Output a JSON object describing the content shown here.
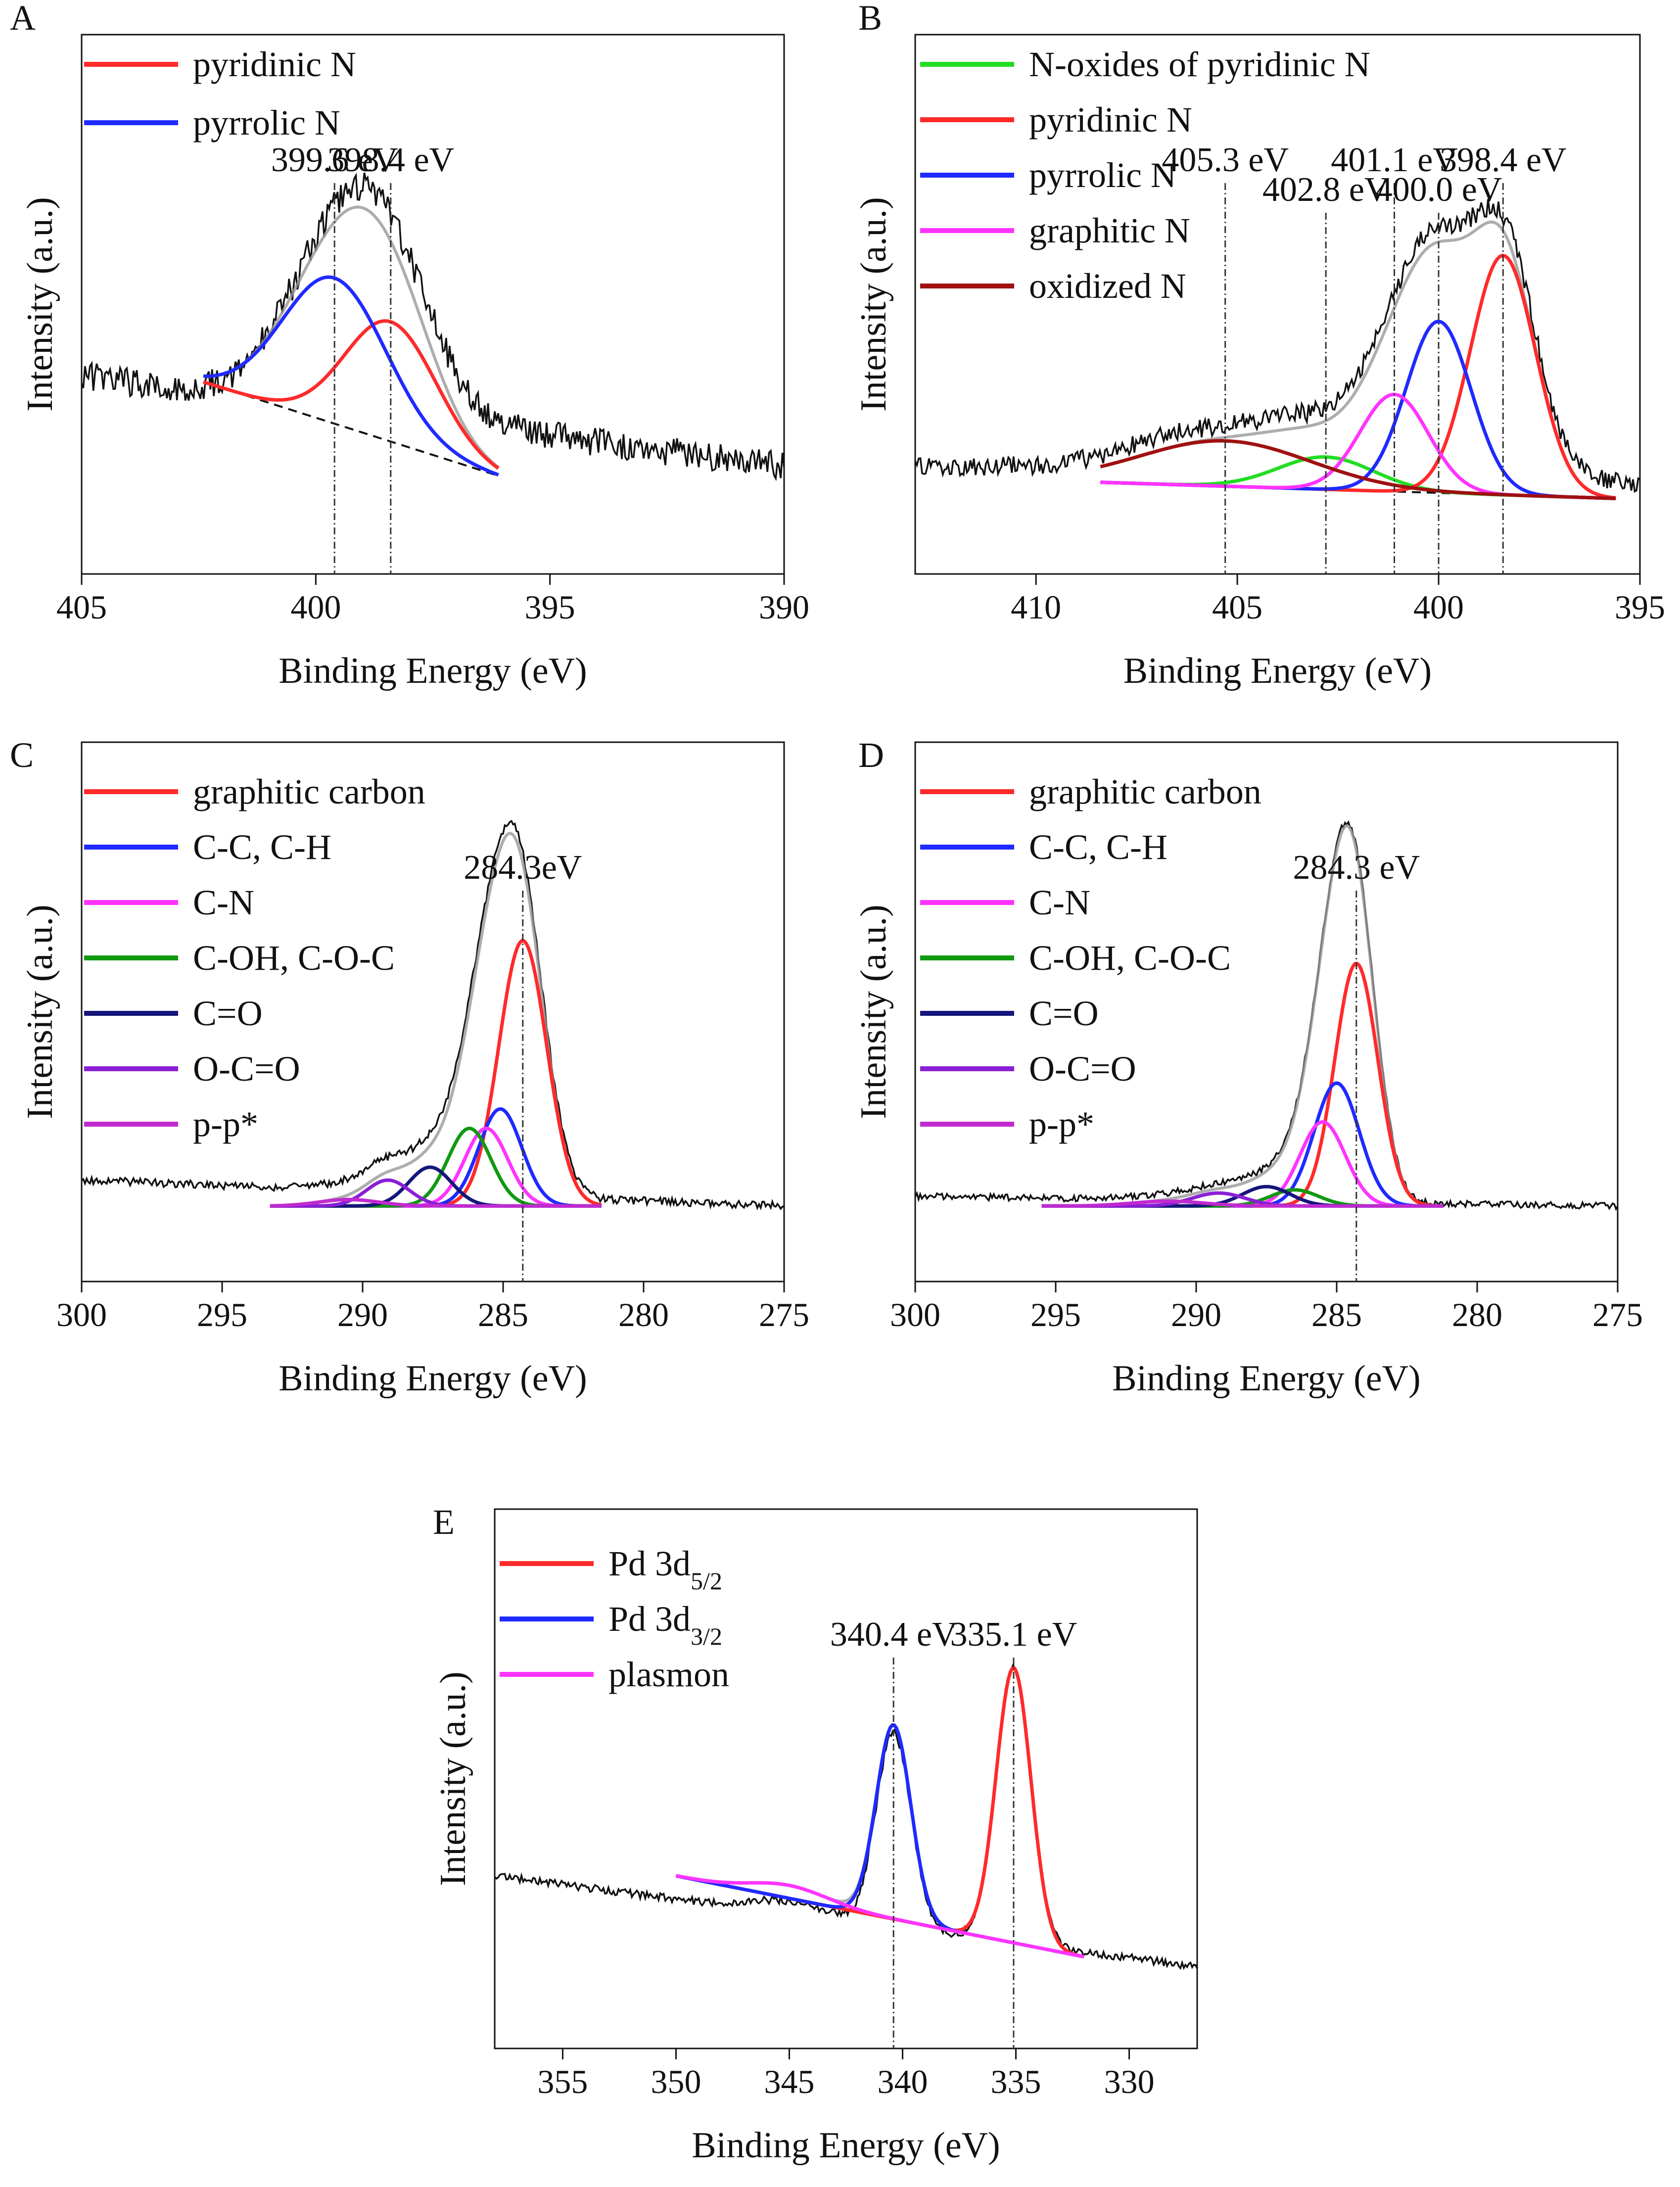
{
  "figure": {
    "xlabel": "Binding Energy (eV)",
    "ylabel": "Intensity (a.u.)"
  },
  "colors": {
    "pyridinic": "#ff2a2a",
    "pyrrolic": "#1f2aff",
    "noxide": "#22dd22",
    "graphitic": "#ff33ff",
    "oxidized": "#a01010",
    "c_oh": "#119911",
    "c_o": "#15157a",
    "o_c_o": "#8a1fd6",
    "pipi": "#c02ad0",
    "raw": "#111111",
    "envelope": "#999999"
  },
  "chart_data": [
    {
      "panel": "A",
      "type": "line",
      "xlabel": "Binding Energy (eV)",
      "ylabel": "Intensity (a.u.)",
      "xlim": [
        405,
        390
      ],
      "xticks": [
        405,
        400,
        395,
        390
      ],
      "legend": [
        "pyridinic N",
        "pyrrolic N"
      ],
      "series": [
        {
          "name": "pyridinic N",
          "center": 398.4,
          "fwhm": 2.3,
          "amp": 0.37
        },
        {
          "name": "pyrrolic N",
          "center": 399.6,
          "fwhm": 2.6,
          "amp": 0.45
        }
      ],
      "background": {
        "range": [
          402.4,
          396.1
        ],
        "start": 0.36,
        "end": 0.07
      },
      "raw": {
        "range": [
          405,
          390
        ],
        "base_left": 0.38,
        "base_right": 0.1,
        "noise": 0.045
      },
      "annotations": [
        {
          "label": "399.6 eV",
          "x": 399.6
        },
        {
          "label": "398.4 eV",
          "x": 398.4
        }
      ]
    },
    {
      "panel": "B",
      "type": "line",
      "xlabel": "Binding Energy (eV)",
      "ylabel": "Intensity (a.u.)",
      "xlim": [
        413,
        395
      ],
      "xticks": [
        410,
        405,
        400,
        395
      ],
      "legend": [
        "N-oxides of pyridinic N",
        "pyridinic N",
        "pyrrolic N",
        "graphitic N",
        "oxidized N"
      ],
      "series": [
        {
          "name": "N-oxides of pyridinic N",
          "center": 402.8,
          "fwhm": 2.8,
          "amp": 0.1
        },
        {
          "name": "pyridinic N",
          "center": 398.4,
          "fwhm": 1.9,
          "amp": 0.74
        },
        {
          "name": "pyrrolic N",
          "center": 400.0,
          "fwhm": 1.9,
          "amp": 0.53
        },
        {
          "name": "graphitic N",
          "center": 401.1,
          "fwhm": 2.0,
          "amp": 0.3
        },
        {
          "name": "oxidized N",
          "center": 405.3,
          "fwhm": 5.0,
          "amp": 0.14
        }
      ],
      "background": {
        "range": [
          408.4,
          395.6
        ],
        "start": 0.05,
        "end": 0.0
      },
      "raw": {
        "range": [
          413,
          395
        ],
        "base_left": 0.1,
        "base_right": 0.05,
        "noise": 0.03
      },
      "annotations": [
        {
          "label": "405.3 eV",
          "x": 405.3
        },
        {
          "label": "402.8 eV",
          "x": 402.8
        },
        {
          "label": "401.1 eV",
          "x": 401.1
        },
        {
          "label": "400.0 eV",
          "x": 400.0
        },
        {
          "label": "398.4 eV",
          "x": 398.4
        }
      ]
    },
    {
      "panel": "C",
      "type": "line",
      "xlabel": "Binding Energy (eV)",
      "ylabel": "Intensity (a.u.)",
      "xlim": [
        300,
        275
      ],
      "xticks": [
        300,
        295,
        290,
        285,
        280,
        275
      ],
      "legend": [
        "graphitic carbon",
        "C-C, C-H",
        "C-N",
        "C-OH, C-O-C",
        "C=O",
        "O-C=O",
        "p-p*"
      ],
      "series": [
        {
          "name": "graphitic carbon",
          "center": 284.3,
          "fwhm": 2.0,
          "amp": 0.82
        },
        {
          "name": "C-C, C-H",
          "center": 285.1,
          "fwhm": 1.8,
          "amp": 0.3
        },
        {
          "name": "C-N",
          "center": 285.6,
          "fwhm": 1.8,
          "amp": 0.24
        },
        {
          "name": "C-OH, C-O-C",
          "center": 286.2,
          "fwhm": 1.8,
          "amp": 0.24
        },
        {
          "name": "C=O",
          "center": 287.6,
          "fwhm": 1.8,
          "amp": 0.12
        },
        {
          "name": "O-C=O",
          "center": 289.1,
          "fwhm": 1.8,
          "amp": 0.08
        },
        {
          "name": "p-p*",
          "center": 290.5,
          "fwhm": 2.5,
          "amp": 0.02
        }
      ],
      "background": {
        "range": [
          293.3,
          281.5
        ],
        "start": 0.0,
        "end": 0.0
      },
      "raw": {
        "range": [
          300,
          275
        ],
        "base_left": 0.08,
        "base_right": 0.0,
        "noise": 0.012
      },
      "annotations": [
        {
          "label": "284.3eV",
          "x": 284.3
        }
      ]
    },
    {
      "panel": "D",
      "type": "line",
      "xlabel": "Binding Energy (eV)",
      "ylabel": "Intensity (a.u.)",
      "xlim": [
        300,
        275
      ],
      "xticks": [
        300,
        295,
        290,
        285,
        280,
        275
      ],
      "legend": [
        "graphitic carbon",
        "C-C, C-H",
        "C-N",
        "C-OH, C-O-C",
        "C=O",
        "O-C=O",
        "p-p*"
      ],
      "series": [
        {
          "name": "graphitic carbon",
          "center": 284.3,
          "fwhm": 1.8,
          "amp": 0.75
        },
        {
          "name": "C-C, C-H",
          "center": 285.0,
          "fwhm": 1.9,
          "amp": 0.38
        },
        {
          "name": "C-N",
          "center": 285.5,
          "fwhm": 1.9,
          "amp": 0.26
        },
        {
          "name": "C-OH, C-O-C",
          "center": 286.5,
          "fwhm": 2.0,
          "amp": 0.05
        },
        {
          "name": "C=O",
          "center": 287.5,
          "fwhm": 2.0,
          "amp": 0.06
        },
        {
          "name": "O-C=O",
          "center": 289.2,
          "fwhm": 2.2,
          "amp": 0.04
        },
        {
          "name": "p-p*",
          "center": 291,
          "fwhm": 3.0,
          "amp": 0.015
        }
      ],
      "background": {
        "range": [
          295.5,
          281.2
        ],
        "start": 0.0,
        "end": 0.0
      },
      "raw": {
        "range": [
          300,
          275
        ],
        "base_left": 0.03,
        "base_right": 0.0,
        "noise": 0.01
      },
      "annotations": [
        {
          "label": "284.3 eV",
          "x": 284.3
        }
      ]
    },
    {
      "panel": "E",
      "type": "line",
      "xlabel": "Binding Energy (eV)",
      "ylabel": "Intensity (a.u.)",
      "xlim": [
        358,
        327
      ],
      "xticks": [
        355,
        350,
        345,
        340,
        335,
        330
      ],
      "legend": [
        "Pd 3d5/2",
        "Pd 3d3/2",
        "plasmon"
      ],
      "series": [
        {
          "name": "Pd 3d5/2",
          "center": 335.1,
          "fwhm": 1.8,
          "amp": 0.85
        },
        {
          "name": "Pd 3d3/2",
          "center": 340.4,
          "fwhm": 1.8,
          "amp": 0.6
        },
        {
          "name": "plasmon",
          "center": 345.0,
          "fwhm": 4.0,
          "amp": 0.04
        }
      ],
      "background": {
        "range": [
          350,
          332
        ],
        "start": 0.3,
        "end": 0.05
      },
      "raw": {
        "range": [
          358,
          327
        ],
        "base_left": 0.3,
        "base_right": 0.02,
        "noise": 0.012
      },
      "annotations": [
        {
          "label": "340.4 eV",
          "x": 340.4
        },
        {
          "label": "335.1 eV",
          "x": 335.1
        }
      ]
    }
  ]
}
